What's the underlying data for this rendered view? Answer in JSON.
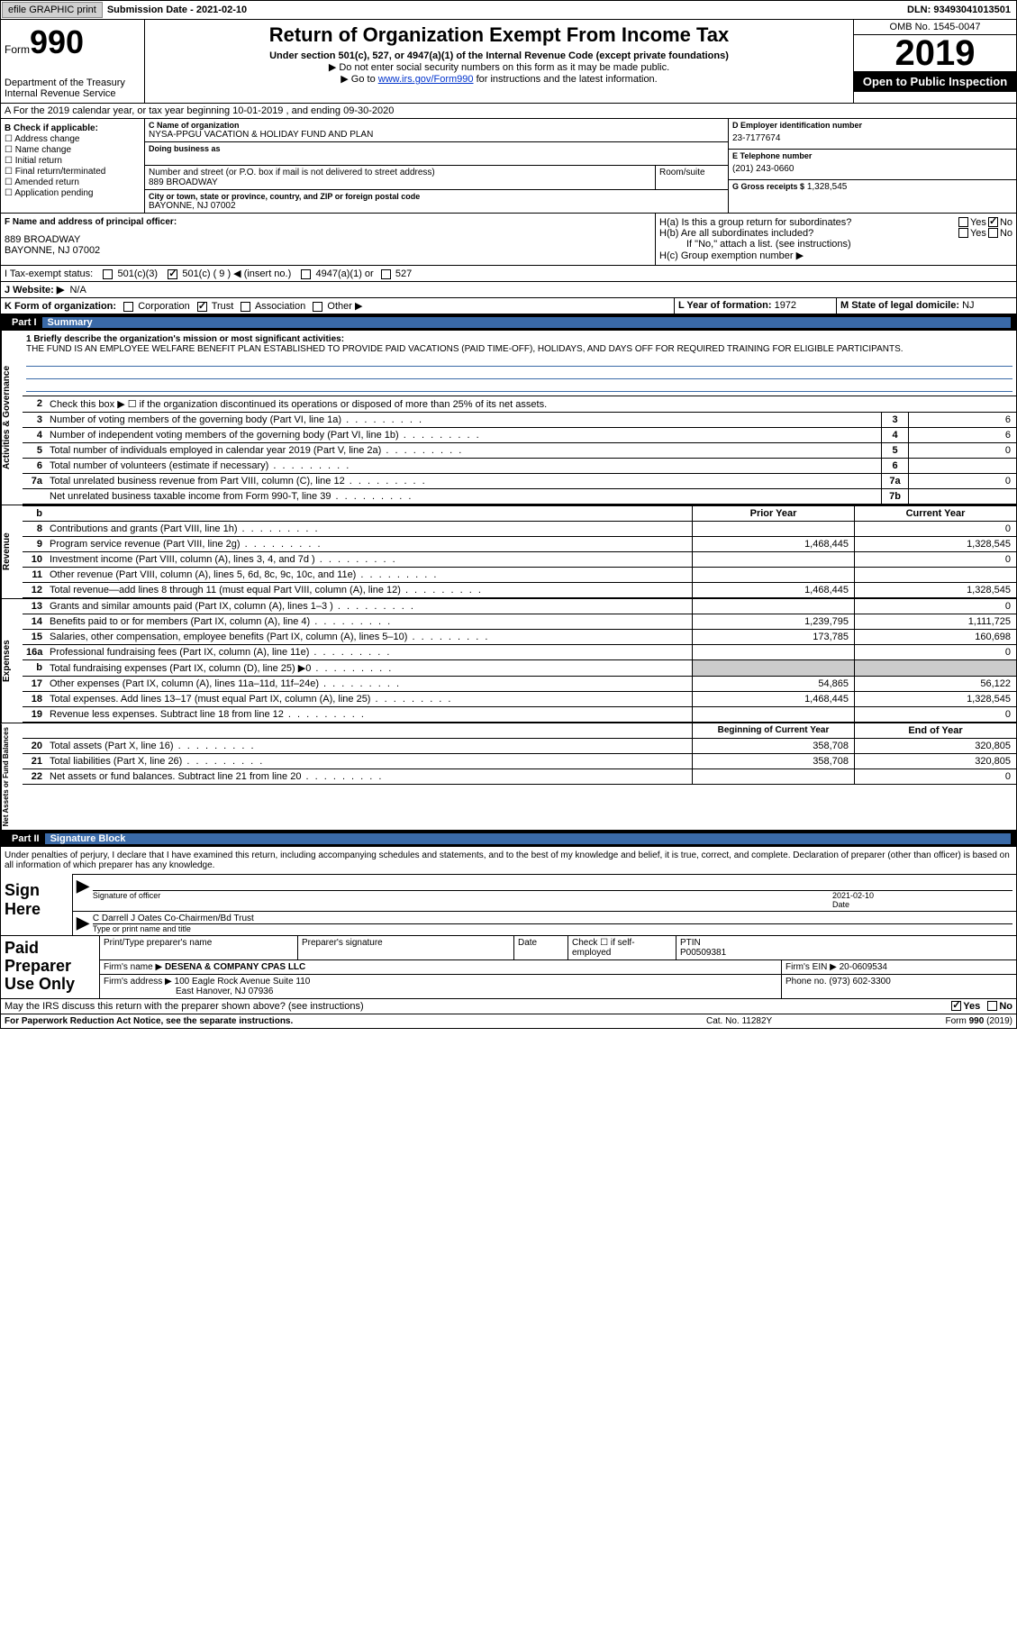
{
  "topbar": {
    "btn1": "efile GRAPHIC print",
    "sub_label": "Submission Date - 2021-02-10",
    "dln": "DLN: 93493041013501"
  },
  "header": {
    "form_small": "Form",
    "form_big": "990",
    "dept": "Department of the Treasury\nInternal Revenue Service",
    "title": "Return of Organization Exempt From Income Tax",
    "sub": "Under section 501(c), 527, or 4947(a)(1) of the Internal Revenue Code (except private foundations)",
    "note1": "▶ Do not enter social security numbers on this form as it may be made public.",
    "note2_pre": "▶ Go to ",
    "note2_link": "www.irs.gov/Form990",
    "note2_post": " for instructions and the latest information.",
    "omb": "OMB No. 1545-0047",
    "year": "2019",
    "open": "Open to Public Inspection"
  },
  "row_a": "A For the 2019 calendar year, or tax year beginning 10-01-2019   , and ending 09-30-2020",
  "box_b": {
    "label": "B Check if applicable:",
    "items": [
      "Address change",
      "Name change",
      "Initial return",
      "Final return/terminated",
      "Amended return",
      "Application pending"
    ]
  },
  "box_c": {
    "label": "C Name of organization",
    "name": "NYSA-PPGU VACATION & HOLIDAY FUND AND PLAN",
    "dba_label": "Doing business as",
    "addr_label": "Number and street (or P.O. box if mail is not delivered to street address)",
    "room_label": "Room/suite",
    "addr": "889 BROADWAY",
    "city_label": "City or town, state or province, country, and ZIP or foreign postal code",
    "city": "BAYONNE, NJ  07002"
  },
  "box_d": {
    "label": "D Employer identification number",
    "val": "23-7177674"
  },
  "box_e": {
    "label": "E Telephone number",
    "val": "(201) 243-0660"
  },
  "box_g": {
    "label": "G Gross receipts $",
    "val": "1,328,545"
  },
  "box_f": {
    "label": "F Name and address of principal officer:",
    "addr": "889 BROADWAY\nBAYONNE, NJ  07002"
  },
  "box_h": {
    "a": "H(a)  Is this a group return for subordinates?",
    "b": "H(b)  Are all subordinates included?",
    "note": "If \"No,\" attach a list. (see instructions)",
    "c": "H(c)  Group exemption number ▶",
    "yes": "Yes",
    "no": "No"
  },
  "line_i": {
    "label": "I   Tax-exempt status:",
    "o1": "501(c)(3)",
    "o2": "501(c) ( 9 ) ◀ (insert no.)",
    "o3": "4947(a)(1) or",
    "o4": "527"
  },
  "line_j": {
    "label": "J   Website: ▶",
    "val": "N/A"
  },
  "line_k": {
    "label": "K Form of organization:",
    "o1": "Corporation",
    "o2": "Trust",
    "o3": "Association",
    "o4": "Other ▶"
  },
  "line_l": {
    "label": "L Year of formation:",
    "val": "1972"
  },
  "line_m": {
    "label": "M State of legal domicile:",
    "val": "NJ"
  },
  "part1": {
    "num": "Part I",
    "title": "Summary"
  },
  "mission": {
    "label": "1  Briefly describe the organization's mission or most significant activities:",
    "text": "THE FUND IS AN EMPLOYEE WELFARE BENEFIT PLAN ESTABLISHED TO PROVIDE PAID VACATIONS (PAID TIME-OFF), HOLIDAYS, AND DAYS OFF FOR REQUIRED TRAINING FOR ELIGIBLE PARTICIPANTS."
  },
  "gov_rows": [
    {
      "n": "2",
      "t": "Check this box ▶ ☐  if the organization discontinued its operations or disposed of more than 25% of its net assets."
    },
    {
      "n": "3",
      "t": "Number of voting members of the governing body (Part VI, line 1a)",
      "b": "3",
      "v": "6"
    },
    {
      "n": "4",
      "t": "Number of independent voting members of the governing body (Part VI, line 1b)",
      "b": "4",
      "v": "6"
    },
    {
      "n": "5",
      "t": "Total number of individuals employed in calendar year 2019 (Part V, line 2a)",
      "b": "5",
      "v": "0"
    },
    {
      "n": "6",
      "t": "Total number of volunteers (estimate if necessary)",
      "b": "6",
      "v": ""
    },
    {
      "n": "7a",
      "t": "Total unrelated business revenue from Part VIII, column (C), line 12",
      "b": "7a",
      "v": "0"
    },
    {
      "n": "",
      "t": "Net unrelated business taxable income from Form 990-T, line 39",
      "b": "7b",
      "v": ""
    }
  ],
  "col_hdr": {
    "b": "b",
    "py": "Prior Year",
    "cy": "Current Year"
  },
  "revenue_rows": [
    {
      "n": "8",
      "t": "Contributions and grants (Part VIII, line 1h)",
      "py": "",
      "cy": "0"
    },
    {
      "n": "9",
      "t": "Program service revenue (Part VIII, line 2g)",
      "py": "1,468,445",
      "cy": "1,328,545"
    },
    {
      "n": "10",
      "t": "Investment income (Part VIII, column (A), lines 3, 4, and 7d )",
      "py": "",
      "cy": "0"
    },
    {
      "n": "11",
      "t": "Other revenue (Part VIII, column (A), lines 5, 6d, 8c, 9c, 10c, and 11e)",
      "py": "",
      "cy": ""
    },
    {
      "n": "12",
      "t": "Total revenue—add lines 8 through 11 (must equal Part VIII, column (A), line 12)",
      "py": "1,468,445",
      "cy": "1,328,545"
    }
  ],
  "expense_rows": [
    {
      "n": "13",
      "t": "Grants and similar amounts paid (Part IX, column (A), lines 1–3 )",
      "py": "",
      "cy": "0"
    },
    {
      "n": "14",
      "t": "Benefits paid to or for members (Part IX, column (A), line 4)",
      "py": "1,239,795",
      "cy": "1,111,725"
    },
    {
      "n": "15",
      "t": "Salaries, other compensation, employee benefits (Part IX, column (A), lines 5–10)",
      "py": "173,785",
      "cy": "160,698"
    },
    {
      "n": "16a",
      "t": "Professional fundraising fees (Part IX, column (A), line 11e)",
      "py": "",
      "cy": "0"
    },
    {
      "n": "b",
      "t": "Total fundraising expenses (Part IX, column (D), line 25) ▶0",
      "py": "GRAY",
      "cy": "GRAY"
    },
    {
      "n": "17",
      "t": "Other expenses (Part IX, column (A), lines 11a–11d, 11f–24e)",
      "py": "54,865",
      "cy": "56,122"
    },
    {
      "n": "18",
      "t": "Total expenses. Add lines 13–17 (must equal Part IX, column (A), line 25)",
      "py": "1,468,445",
      "cy": "1,328,545"
    },
    {
      "n": "19",
      "t": "Revenue less expenses. Subtract line 18 from line 12",
      "py": "",
      "cy": "0"
    }
  ],
  "net_hdr": {
    "py": "Beginning of Current Year",
    "cy": "End of Year"
  },
  "net_rows": [
    {
      "n": "20",
      "t": "Total assets (Part X, line 16)",
      "py": "358,708",
      "cy": "320,805"
    },
    {
      "n": "21",
      "t": "Total liabilities (Part X, line 26)",
      "py": "358,708",
      "cy": "320,805"
    },
    {
      "n": "22",
      "t": "Net assets or fund balances. Subtract line 21 from line 20",
      "py": "",
      "cy": "0"
    }
  ],
  "part2": {
    "num": "Part II",
    "title": "Signature Block"
  },
  "sig_text": "Under penalties of perjury, I declare that I have examined this return, including accompanying schedules and statements, and to the best of my knowledge and belief, it is true, correct, and complete. Declaration of preparer (other than officer) is based on all information of which preparer has any knowledge.",
  "sign": {
    "label": "Sign Here",
    "l1a": "Signature of officer",
    "l1b_date": "2021-02-10",
    "l1b_lbl": "Date",
    "l2a": "C Darrell J Oates  Co-Chairmen/Bd Trust",
    "l2b": "Type or print name and title"
  },
  "prep": {
    "label": "Paid Preparer Use Only",
    "h1": "Print/Type preparer's name",
    "h2": "Preparer's signature",
    "h3": "Date",
    "h4": "Check ☐ if self-employed",
    "h5": "PTIN",
    "ptin": "P00509381",
    "firm_lbl": "Firm's name  ▶",
    "firm": "DESENA & COMPANY CPAS LLC",
    "ein_lbl": "Firm's EIN ▶",
    "ein": "20-0609534",
    "addr_lbl": "Firm's address ▶",
    "addr": "100 Eagle Rock Avenue Suite 110",
    "city": "East Hanover, NJ  07936",
    "ph_lbl": "Phone no.",
    "ph": "(973) 602-3300"
  },
  "may": {
    "t": "May the IRS discuss this return with the preparer shown above? (see instructions)",
    "yes": "Yes",
    "no": "No"
  },
  "foot": {
    "l": "For Paperwork Reduction Act Notice, see the separate instructions.",
    "m": "Cat. No. 11282Y",
    "r": "Form 990 (2019)"
  },
  "side_labels": {
    "ag": "Activities & Governance",
    "rev": "Revenue",
    "exp": "Expenses",
    "net": "Net Assets or Fund Balances"
  }
}
